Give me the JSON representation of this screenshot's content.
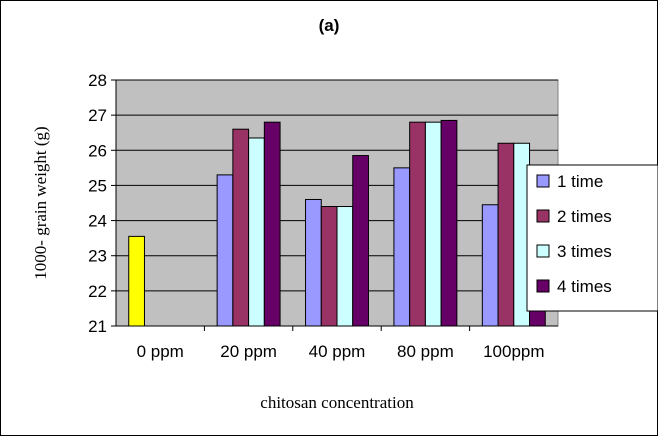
{
  "chart_data": {
    "type": "bar",
    "title": "(a)",
    "xlabel": "chitosan concentration",
    "ylabel": "1000- grain weight (g)",
    "ylim": [
      21,
      28
    ],
    "yticks": [
      21,
      22,
      23,
      24,
      25,
      26,
      27,
      28
    ],
    "grid": true,
    "legend_position": "right",
    "plot_background": "#C0C0C0",
    "categories": [
      "0 ppm",
      "20 ppm",
      "40 ppm",
      "80 ppm",
      "100ppm"
    ],
    "single_bar": {
      "category": "0 ppm",
      "value": 23.55,
      "color": "#FFFF00"
    },
    "series": [
      {
        "name": "1 time",
        "color": "#9999FF",
        "values": [
          null,
          25.3,
          24.6,
          25.5,
          24.45
        ]
      },
      {
        "name": "2 times",
        "color": "#993366",
        "values": [
          null,
          26.6,
          24.4,
          26.8,
          26.2
        ]
      },
      {
        "name": "3 times",
        "color": "#CCFFFF",
        "values": [
          null,
          26.35,
          24.4,
          26.8,
          26.2
        ]
      },
      {
        "name": "4 times",
        "color": "#660066",
        "values": [
          null,
          26.8,
          25.85,
          26.85,
          25.2
        ]
      }
    ]
  }
}
